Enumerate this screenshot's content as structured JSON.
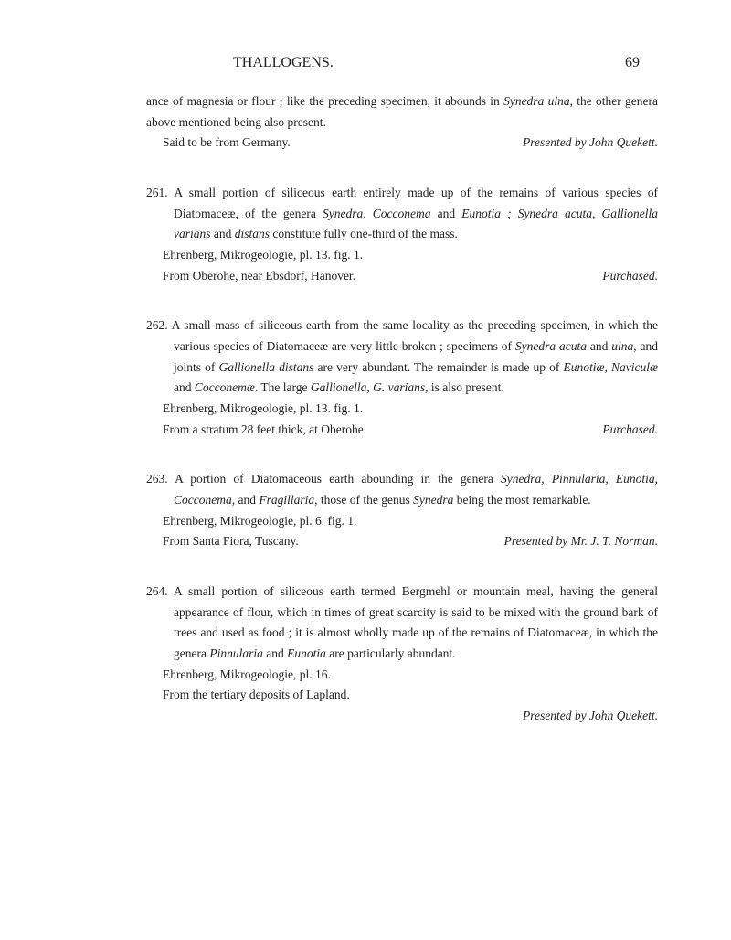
{
  "header": {
    "title": "THALLOGENS.",
    "page_number": "69"
  },
  "entries": [
    {
      "continuation": {
        "line1_a": "ance of magnesia or flour ; like the preceding specimen, it abounds in ",
        "line1_i": "Synedra ulna",
        "line1_b": ", the other genera above mentioned being also present.",
        "line2_left": "Said to be from Germany.",
        "line2_right": "Presented by John Quekett."
      }
    },
    {
      "number": "261.",
      "body_a": "A small portion of siliceous earth entirely made up of the remains of various species of Diatomaceæ, of the genera ",
      "body_i1": "Synedra, Cocconema",
      "body_b": " and ",
      "body_i2": "Eunotia ; Synedra acuta, Gallionella varians",
      "body_c": " and ",
      "body_i3": "distans",
      "body_d": " constitute fully one-third of the mass.",
      "sub1": "Ehrenberg, Mikrogeologie, pl. 13. fig. 1.",
      "sub2_left": "From Oberohe, near Ebsdorf, Hanover.",
      "sub2_right": "Purchased."
    },
    {
      "number": "262.",
      "body_a": "A small mass of siliceous earth from the same locality as the preceding specimen, in which the various species of Diatomaceæ are very little broken ; specimens of ",
      "body_i1": "Synedra acuta",
      "body_b": " and ",
      "body_i2": "ulna",
      "body_c": ", and joints of ",
      "body_i3": "Gallionella distans",
      "body_d": " are very abundant.   The remainder is made up of ",
      "body_i4": "Eunotiæ, Naviculæ",
      "body_e": " and ",
      "body_i5": "Cocconemæ",
      "body_f": ".   The large ",
      "body_i6": "Gallionella, G. varians",
      "body_g": ", is also present.",
      "sub1": "Ehrenberg, Mikrogeologie, pl. 13. fig. 1.",
      "sub2_left": "From a stratum 28 feet thick, at Oberohe.",
      "sub2_right": "Purchased."
    },
    {
      "number": "263.",
      "body_a": "A portion of Diatomaceous earth abounding in the genera ",
      "body_i1": "Synedra, Pinnularia, Eunotia, Cocconema",
      "body_b": ", and ",
      "body_i2": "Fragillaria",
      "body_c": ", those of the genus ",
      "body_i3": "Synedra",
      "body_d": " being the most remarkable.",
      "sub1": "Ehrenberg, Mikrogeologie, pl. 6. fig. 1.",
      "sub2_left": "From Santa Fiora, Tuscany.",
      "sub2_right": "Presented by Mr. J. T. Norman."
    },
    {
      "number": "264.",
      "body_a": "A small portion of siliceous earth termed Bergmehl or mountain meal, having the general appearance of flour, which in times of great scarcity is said to be mixed with the ground bark of trees and used as food ; it is almost wholly made up of the remains of Diatomaceæ, in which the genera ",
      "body_i1": "Pinnularia",
      "body_b": " and ",
      "body_i2": "Eunotia",
      "body_c": " are particularly abundant.",
      "sub1": "Ehrenberg, Mikrogeologie, pl. 16.",
      "sub2": "From the tertiary deposits of Lapland.",
      "sub3_right": "Presented by John Quekett."
    }
  ]
}
